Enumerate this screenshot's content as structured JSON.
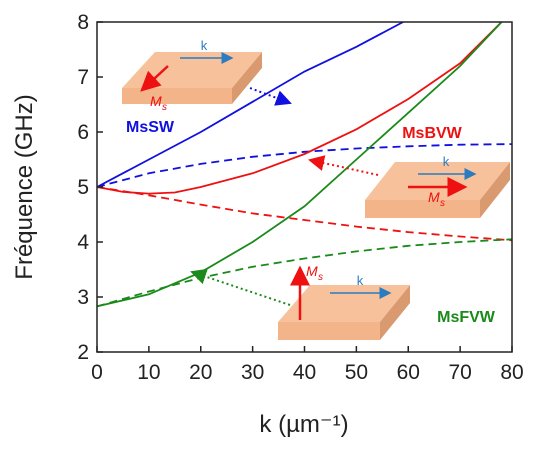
{
  "chart_data": {
    "type": "line",
    "xlabel": "k (µm⁻¹)",
    "ylabel": "Fréquence (GHz)",
    "xlim": [
      0,
      80
    ],
    "ylim": [
      2,
      8
    ],
    "xticks": [
      0,
      10,
      20,
      30,
      40,
      50,
      60,
      70,
      80
    ],
    "yticks": [
      2,
      3,
      4,
      5,
      6,
      7,
      8
    ],
    "series": [
      {
        "color": "#1010e0",
        "dashed": false,
        "x": [
          0,
          10,
          20,
          30,
          40,
          50,
          59
        ],
        "values": [
          5,
          5.5,
          6.0,
          6.55,
          7.1,
          7.55,
          8
        ]
      },
      {
        "color": "#1010e0",
        "dashed": true,
        "x": [
          0,
          10,
          20,
          30,
          40,
          50,
          60,
          70,
          80
        ],
        "values": [
          5,
          5.25,
          5.42,
          5.55,
          5.64,
          5.7,
          5.74,
          5.77,
          5.78
        ]
      },
      {
        "color": "#ee1111",
        "dashed": false,
        "x": [
          0,
          5,
          10,
          15,
          20,
          30,
          40,
          50,
          60,
          70,
          78
        ],
        "values": [
          5,
          4.91,
          4.88,
          4.9,
          5.0,
          5.25,
          5.6,
          6.05,
          6.6,
          7.25,
          8
        ]
      },
      {
        "color": "#ee1111",
        "dashed": true,
        "x": [
          0,
          10,
          20,
          30,
          40,
          50,
          60,
          70,
          80
        ],
        "values": [
          5,
          4.85,
          4.68,
          4.52,
          4.4,
          4.28,
          4.18,
          4.1,
          4.03
        ]
      },
      {
        "color": "#1a8a1a",
        "dashed": false,
        "x": [
          0,
          10,
          20,
          30,
          40,
          50,
          60,
          70,
          78
        ],
        "values": [
          2.83,
          3.05,
          3.45,
          4.0,
          4.65,
          5.5,
          6.35,
          7.2,
          8
        ]
      },
      {
        "color": "#1a8a1a",
        "dashed": true,
        "x": [
          0,
          10,
          20,
          30,
          40,
          50,
          60,
          70,
          80
        ],
        "values": [
          2.83,
          3.1,
          3.35,
          3.55,
          3.7,
          3.83,
          3.93,
          4.0,
          4.05
        ]
      }
    ],
    "annotations": [
      {
        "text": "MsSW",
        "color": "#1010e0"
      },
      {
        "text": "MsBVW",
        "color": "#ee1111"
      },
      {
        "text": "MsFVW",
        "color": "#1a8a1a"
      }
    ],
    "insets": [
      {
        "k": "k",
        "m": "M",
        "sub": "s"
      },
      {
        "k": "k",
        "m": "M",
        "sub": "s"
      },
      {
        "k": "k",
        "m": "M",
        "sub": "s"
      }
    ]
  }
}
